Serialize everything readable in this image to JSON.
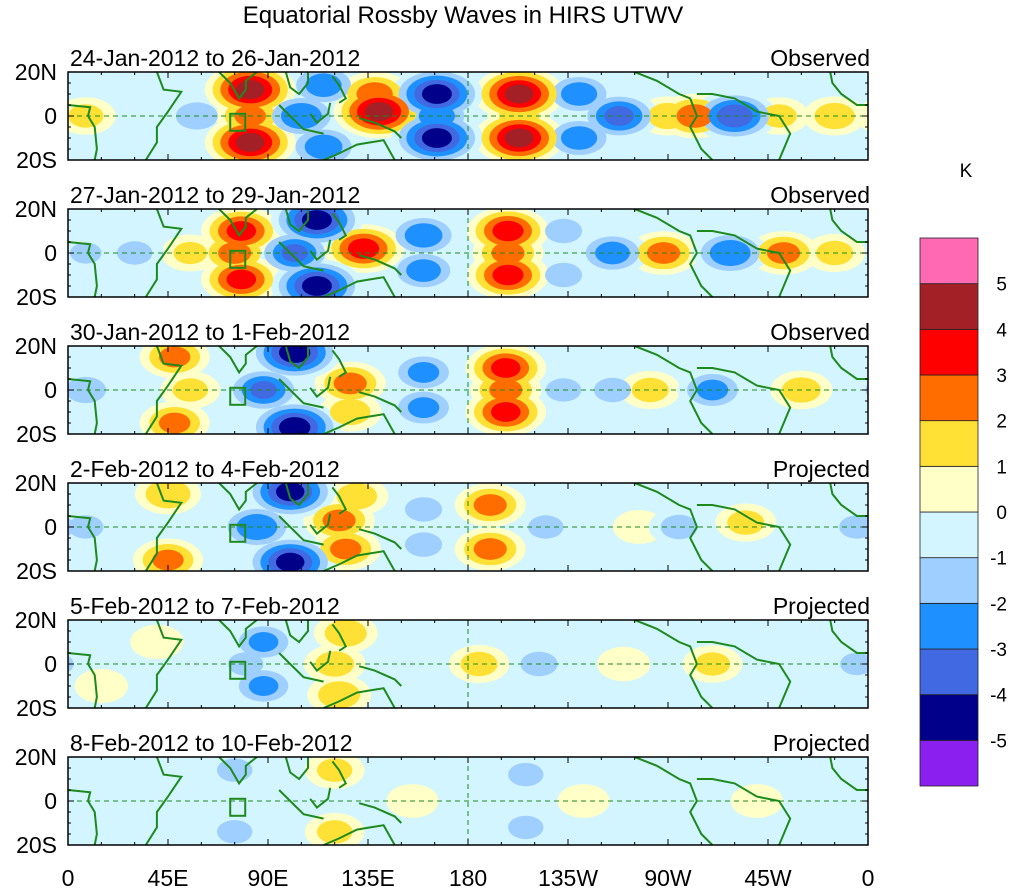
{
  "chart_data": {
    "type": "heatmap",
    "title": "Equatorial Rossby Waves in HIRS UTWV",
    "units": "K",
    "x_ticks": [
      "0",
      "45E",
      "90E",
      "135E",
      "180",
      "135W",
      "90W",
      "45W",
      "0"
    ],
    "x_tick_lon": [
      0,
      45,
      90,
      135,
      180,
      225,
      270,
      315,
      360
    ],
    "y_ticks": [
      "20N",
      "0",
      "20S"
    ],
    "y_tick_lat": [
      20,
      0,
      -20
    ],
    "xlim": [
      0,
      360
    ],
    "ylim": [
      -20,
      20
    ],
    "colorbar": {
      "levels": [
        -5,
        -4,
        -3,
        -2,
        -1,
        0,
        1,
        2,
        3,
        4,
        5
      ],
      "labels": [
        "-5",
        "-4",
        "-3",
        "-2",
        "-1",
        "0",
        "1",
        "2",
        "3",
        "4",
        "5"
      ],
      "colors": [
        "#8a1ff0",
        "#00008b",
        "#4169e1",
        "#1e90ff",
        "#9fcfff",
        "#d2f5ff",
        "#ffffc8",
        "#ffe135",
        "#ff6d00",
        "#ff0000",
        "#a22026",
        "#ff69b4"
      ]
    },
    "panels": [
      {
        "label": "24-Jan-2012 to 26-Jan-2012",
        "kind": "Observed",
        "features": [
          {
            "lon": 82,
            "lat": 12,
            "value": 4.2
          },
          {
            "lon": 82,
            "lat": -12,
            "value": 4.2
          },
          {
            "lon": 82,
            "lat": 0,
            "value": 2.2
          },
          {
            "lon": 58,
            "lat": 0,
            "value": -1.6
          },
          {
            "lon": 105,
            "lat": 0,
            "value": -2.8
          },
          {
            "lon": 115,
            "lat": 14,
            "value": -2.5
          },
          {
            "lon": 115,
            "lat": -14,
            "value": -2.6
          },
          {
            "lon": 140,
            "lat": 2,
            "value": 4.2
          },
          {
            "lon": 138,
            "lat": 10,
            "value": 2.5
          },
          {
            "lon": 166,
            "lat": 10,
            "value": -4.3
          },
          {
            "lon": 166,
            "lat": -10,
            "value": -4.3
          },
          {
            "lon": 166,
            "lat": 0,
            "value": -2.5
          },
          {
            "lon": 203,
            "lat": 10,
            "value": 4.2
          },
          {
            "lon": 203,
            "lat": -10,
            "value": 4.2
          },
          {
            "lon": 203,
            "lat": 0,
            "value": 1.5
          },
          {
            "lon": 230,
            "lat": 10,
            "value": -2.5
          },
          {
            "lon": 230,
            "lat": -10,
            "value": -2.5
          },
          {
            "lon": 248,
            "lat": 0,
            "value": -3.2
          },
          {
            "lon": 270,
            "lat": 0,
            "value": 1.5
          },
          {
            "lon": 282,
            "lat": 0,
            "value": 2.5
          },
          {
            "lon": 300,
            "lat": 0,
            "value": -3.6
          },
          {
            "lon": 320,
            "lat": 0,
            "value": 1.2
          },
          {
            "lon": 345,
            "lat": 0,
            "value": 1.5
          },
          {
            "lon": 8,
            "lat": 0,
            "value": 1.2
          }
        ]
      },
      {
        "label": "27-Jan-2012 to 29-Jan-2012",
        "kind": "Observed",
        "features": [
          {
            "lon": 78,
            "lat": 10,
            "value": 3.2
          },
          {
            "lon": 78,
            "lat": -12,
            "value": 3.2
          },
          {
            "lon": 75,
            "lat": 0,
            "value": 2.3
          },
          {
            "lon": 55,
            "lat": 0,
            "value": 1.1
          },
          {
            "lon": 30,
            "lat": 0,
            "value": -1.2
          },
          {
            "lon": 8,
            "lat": 0,
            "value": -1.0
          },
          {
            "lon": 102,
            "lat": 0,
            "value": -3.0
          },
          {
            "lon": 112,
            "lat": 15,
            "value": -4.3
          },
          {
            "lon": 112,
            "lat": -15,
            "value": -4.3
          },
          {
            "lon": 133,
            "lat": 2,
            "value": 3.3
          },
          {
            "lon": 160,
            "lat": 8,
            "value": -2.6
          },
          {
            "lon": 160,
            "lat": -8,
            "value": -2.4
          },
          {
            "lon": 198,
            "lat": 10,
            "value": 3.3
          },
          {
            "lon": 198,
            "lat": -10,
            "value": 3.3
          },
          {
            "lon": 198,
            "lat": 0,
            "value": 2.3
          },
          {
            "lon": 223,
            "lat": 10,
            "value": -1.3
          },
          {
            "lon": 223,
            "lat": -10,
            "value": -1.3
          },
          {
            "lon": 245,
            "lat": 0,
            "value": -2.4
          },
          {
            "lon": 268,
            "lat": 0,
            "value": 2.3
          },
          {
            "lon": 298,
            "lat": 0,
            "value": -2.8
          },
          {
            "lon": 322,
            "lat": 0,
            "value": 2.3
          },
          {
            "lon": 345,
            "lat": 0,
            "value": 1.3
          }
        ]
      },
      {
        "label": "30-Jan-2012 to 1-Feb-2012",
        "kind": "Observed",
        "features": [
          {
            "lon": 48,
            "lat": 15,
            "value": 2.2
          },
          {
            "lon": 48,
            "lat": -15,
            "value": 2.2
          },
          {
            "lon": 55,
            "lat": 0,
            "value": 1.2
          },
          {
            "lon": 8,
            "lat": 0,
            "value": -1.5
          },
          {
            "lon": 88,
            "lat": 0,
            "value": -3.0
          },
          {
            "lon": 102,
            "lat": 17,
            "value": -4.4
          },
          {
            "lon": 102,
            "lat": -17,
            "value": -4.4
          },
          {
            "lon": 127,
            "lat": 3,
            "value": 2.3
          },
          {
            "lon": 127,
            "lat": -10,
            "value": 1.5
          },
          {
            "lon": 160,
            "lat": 8,
            "value": -2.2
          },
          {
            "lon": 160,
            "lat": -8,
            "value": -2.2
          },
          {
            "lon": 197,
            "lat": 10,
            "value": 3.2
          },
          {
            "lon": 197,
            "lat": -10,
            "value": 3.2
          },
          {
            "lon": 197,
            "lat": 0,
            "value": 2.3
          },
          {
            "lon": 223,
            "lat": 0,
            "value": -1.2
          },
          {
            "lon": 245,
            "lat": 0,
            "value": -1.3
          },
          {
            "lon": 262,
            "lat": 0,
            "value": 1.3
          },
          {
            "lon": 290,
            "lat": 0,
            "value": -2.2
          },
          {
            "lon": 330,
            "lat": 0,
            "value": 1.4
          }
        ]
      },
      {
        "label": "2-Feb-2012 to 4-Feb-2012",
        "kind": "Projected",
        "features": [
          {
            "lon": 45,
            "lat": 15,
            "value": 1.8
          },
          {
            "lon": 45,
            "lat": -15,
            "value": 2.2
          },
          {
            "lon": 8,
            "lat": 0,
            "value": -1.2
          },
          {
            "lon": 85,
            "lat": 0,
            "value": -2.8
          },
          {
            "lon": 100,
            "lat": 16,
            "value": -4.2
          },
          {
            "lon": 100,
            "lat": -16,
            "value": -4.2
          },
          {
            "lon": 122,
            "lat": 3,
            "value": 2.3
          },
          {
            "lon": 125,
            "lat": -10,
            "value": 2.2
          },
          {
            "lon": 130,
            "lat": 14,
            "value": 1.5
          },
          {
            "lon": 160,
            "lat": 8,
            "value": -1.3
          },
          {
            "lon": 160,
            "lat": -8,
            "value": -1.3
          },
          {
            "lon": 190,
            "lat": 10,
            "value": 2.3
          },
          {
            "lon": 190,
            "lat": -10,
            "value": 2.3
          },
          {
            "lon": 215,
            "lat": 0,
            "value": -1.2
          },
          {
            "lon": 257,
            "lat": 0,
            "value": 0.5
          },
          {
            "lon": 275,
            "lat": 0,
            "value": -1.3
          },
          {
            "lon": 305,
            "lat": 2,
            "value": 1.3
          },
          {
            "lon": 355,
            "lat": 0,
            "value": -1.2
          }
        ]
      },
      {
        "label": "5-Feb-2012 to 7-Feb-2012",
        "kind": "Projected",
        "features": [
          {
            "lon": 40,
            "lat": 10,
            "value": 0.6
          },
          {
            "lon": 15,
            "lat": -10,
            "value": 0.6
          },
          {
            "lon": 88,
            "lat": 10,
            "value": -2.1
          },
          {
            "lon": 88,
            "lat": -10,
            "value": -2.1
          },
          {
            "lon": 80,
            "lat": 0,
            "value": -1.2
          },
          {
            "lon": 120,
            "lat": 0,
            "value": 1.4
          },
          {
            "lon": 125,
            "lat": 14,
            "value": 1.6
          },
          {
            "lon": 122,
            "lat": -14,
            "value": 1.6
          },
          {
            "lon": 160,
            "lat": 0,
            "value": -0.8
          },
          {
            "lon": 185,
            "lat": 0,
            "value": 1.3
          },
          {
            "lon": 212,
            "lat": 0,
            "value": -1.3
          },
          {
            "lon": 250,
            "lat": 0,
            "value": 0.6
          },
          {
            "lon": 290,
            "lat": 0,
            "value": 1.2
          },
          {
            "lon": 355,
            "lat": 0,
            "value": -1.1
          }
        ]
      },
      {
        "label": "8-Feb-2012 to 10-Feb-2012",
        "kind": "Projected",
        "features": [
          {
            "lon": 25,
            "lat": 0,
            "value": -0.7
          },
          {
            "lon": 75,
            "lat": 14,
            "value": -1.2
          },
          {
            "lon": 75,
            "lat": -14,
            "value": -1.2
          },
          {
            "lon": 120,
            "lat": 14,
            "value": 1.2
          },
          {
            "lon": 120,
            "lat": -14,
            "value": 1.2
          },
          {
            "lon": 155,
            "lat": 0,
            "value": 0.5
          },
          {
            "lon": 185,
            "lat": 0,
            "value": -0.6
          },
          {
            "lon": 206,
            "lat": 12,
            "value": -1.2
          },
          {
            "lon": 206,
            "lat": -12,
            "value": -1.2
          },
          {
            "lon": 232,
            "lat": 0,
            "value": 0.5
          },
          {
            "lon": 265,
            "lat": 0,
            "value": -0.6
          },
          {
            "lon": 310,
            "lat": 0,
            "value": 0.5
          },
          {
            "lon": 350,
            "lat": 0,
            "value": -0.6
          }
        ]
      }
    ]
  }
}
